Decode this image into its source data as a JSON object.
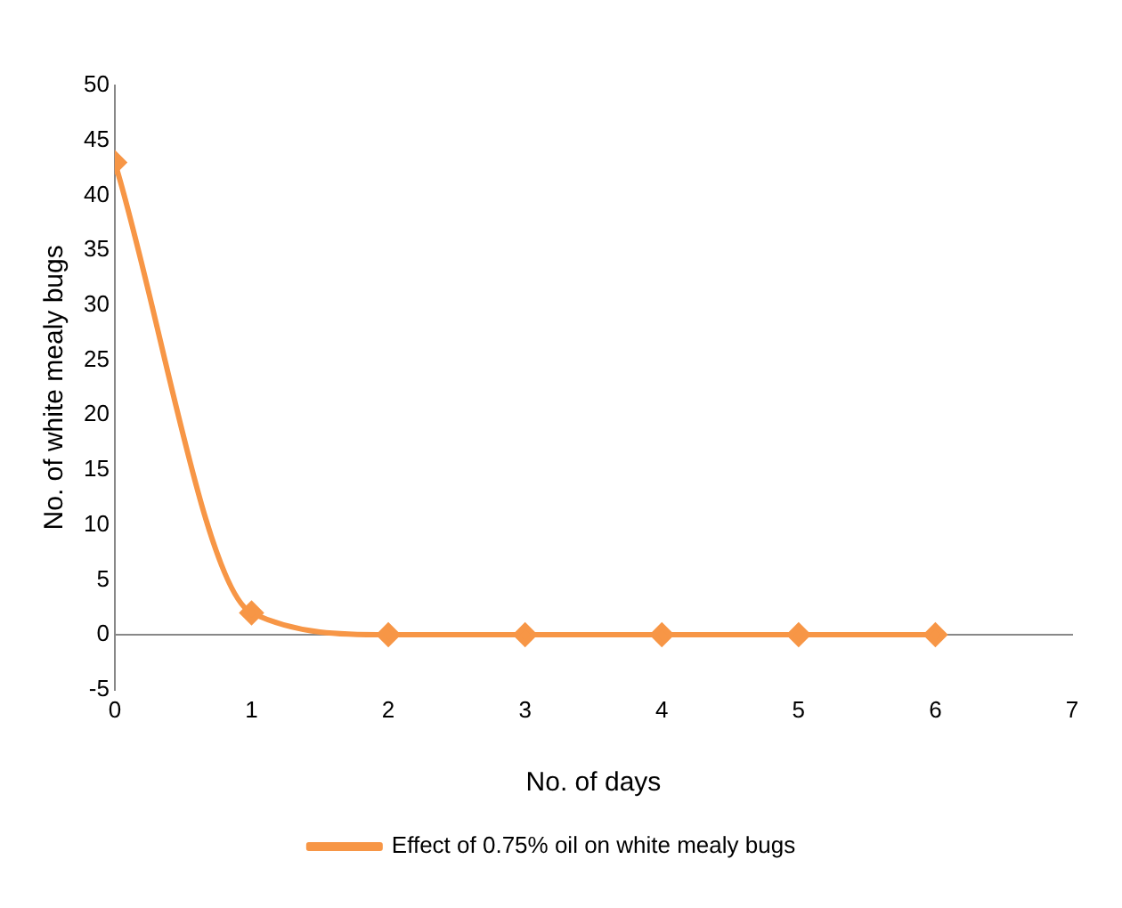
{
  "chart_data": {
    "type": "line",
    "xlabel": "No. of days",
    "ylabel": "No. of white mealy bugs",
    "x": [
      0,
      1,
      2,
      3,
      4,
      5,
      6
    ],
    "series": [
      {
        "name": "Effect of 0.75% oil on white mealy bugs",
        "color": "#f79646",
        "values": [
          43,
          2,
          0,
          0,
          0,
          0,
          0
        ]
      }
    ],
    "xlim": [
      0,
      7
    ],
    "xticks": [
      0,
      1,
      2,
      3,
      4,
      5,
      6,
      7
    ],
    "ylim": [
      -5,
      50
    ],
    "yticks": [
      -5,
      0,
      5,
      10,
      15,
      20,
      25,
      30,
      35,
      40,
      45,
      50
    ],
    "legend": "bottom",
    "marker": "diamond",
    "line_style": "solid"
  }
}
